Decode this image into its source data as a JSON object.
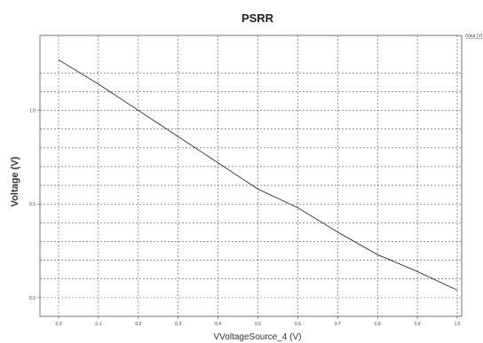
{
  "chart_data": {
    "type": "line",
    "title": "PSRR",
    "xlabel": "VVoltageSource_4 (V)",
    "ylabel": "Voltage (V)",
    "xlim": [
      0.0,
      1.0
    ],
    "ylim": [
      -0.1,
      1.4
    ],
    "x_ticks": [
      "0.0",
      "0.1",
      "0.2",
      "0.3",
      "0.4",
      "0.5",
      "0.6",
      "0.7",
      "0.8",
      "0.9",
      "1.0"
    ],
    "y_ticks": [
      {
        "value": 0.0,
        "label": "0.0"
      },
      {
        "value": 0.5,
        "label": "0.5"
      },
      {
        "value": 1.0,
        "label": "1.0"
      }
    ],
    "grid": true,
    "legend": {
      "placement": "top-right",
      "entries": [
        "/Vout (V)"
      ]
    },
    "series": [
      {
        "name": "/Vout (V)",
        "color": "#333333",
        "x": [
          0.0,
          0.1,
          0.2,
          0.3,
          0.4,
          0.5,
          0.6,
          0.7,
          0.8,
          0.9,
          1.0
        ],
        "y": [
          1.27,
          1.14,
          1.0,
          0.86,
          0.72,
          0.58,
          0.48,
          0.35,
          0.23,
          0.14,
          0.04
        ]
      }
    ]
  }
}
